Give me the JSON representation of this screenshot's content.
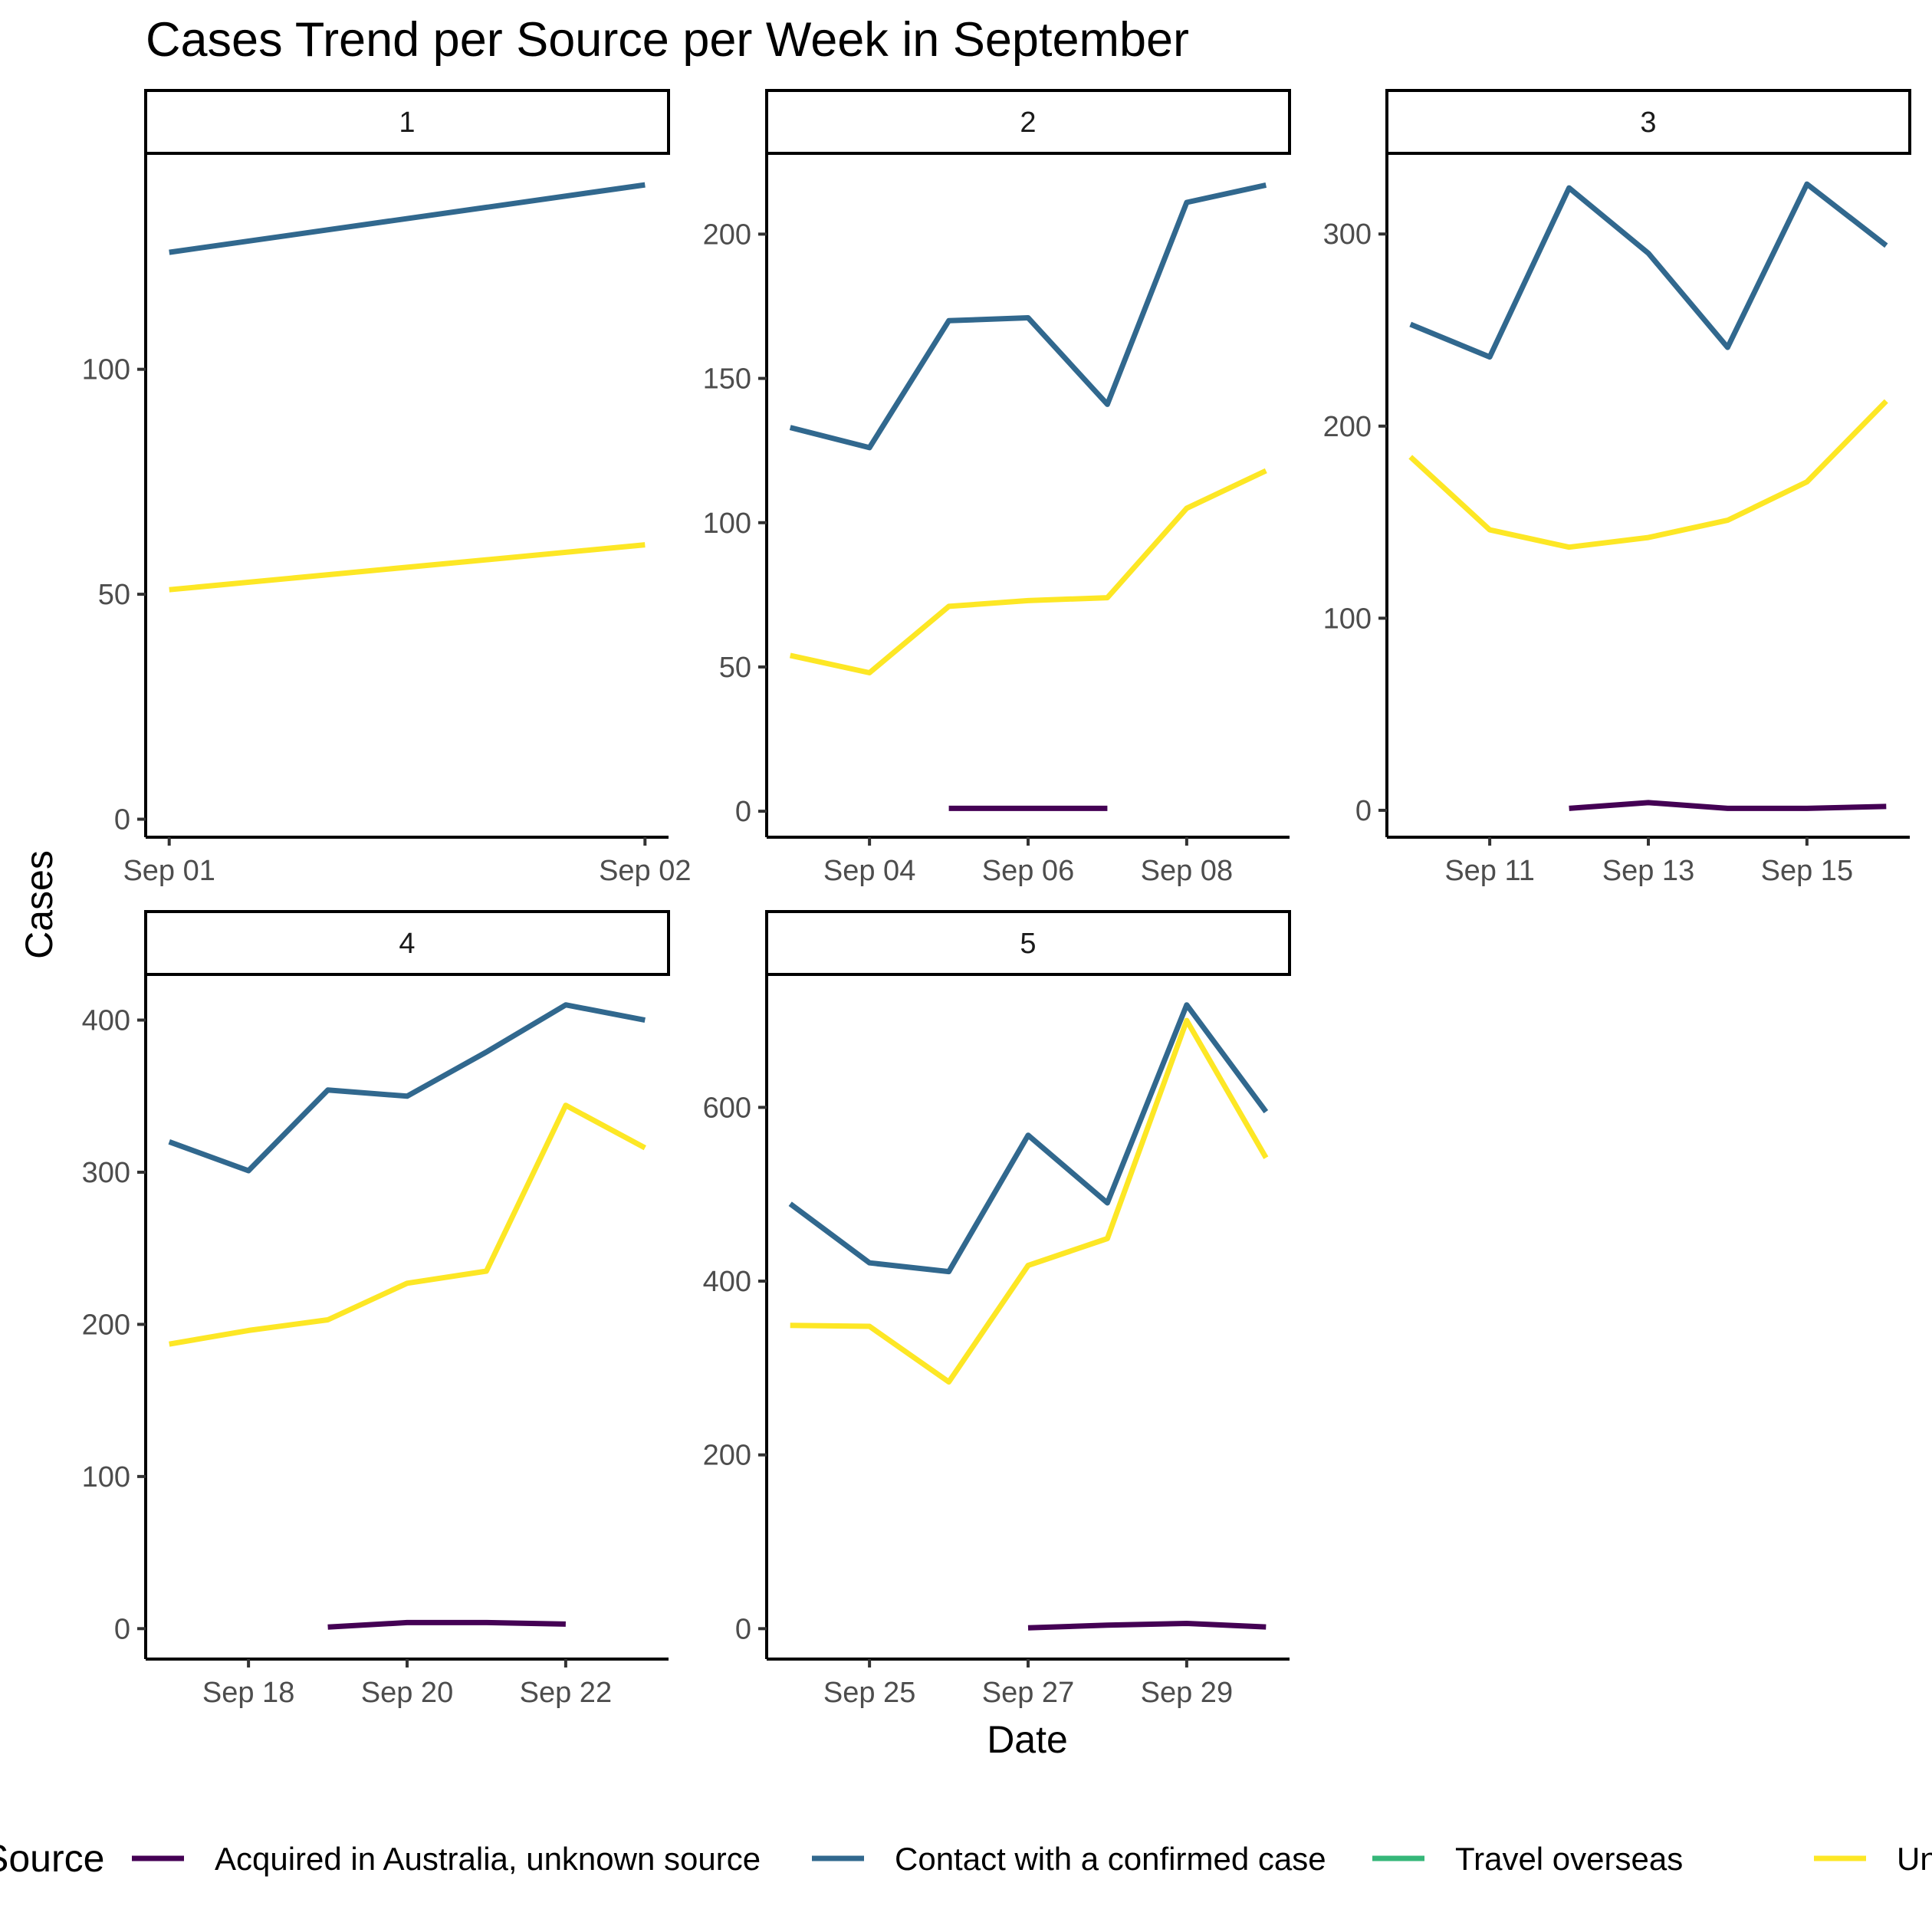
{
  "chart_data": {
    "type": "line",
    "title": "Cases Trend per Source per Week in September",
    "xlabel": "Date",
    "ylabel": "Cases",
    "legend": {
      "title": "Source",
      "placement": "bottom",
      "entries": [
        {
          "name": "Acquired in Australia, unknown source",
          "color": "#440154"
        },
        {
          "name": "Contact with a confirmed case",
          "color": "#31688E"
        },
        {
          "name": "Travel overseas",
          "color": "#35B779"
        },
        {
          "name": "Under investigation",
          "color": "#FDE725"
        }
      ]
    },
    "grid": false,
    "facets": [
      {
        "label": "1",
        "xlim": [
          "2020-09-01",
          "2020-09-02"
        ],
        "x_ticks": [
          {
            "date": "2020-09-01",
            "label": "Sep 01"
          },
          {
            "date": "2020-09-02",
            "label": "Sep 02"
          }
        ],
        "ylim": [
          -4,
          148
        ],
        "y_ticks": [
          0,
          50,
          100
        ],
        "series": [
          {
            "source": "Contact with a confirmed case",
            "x": [
              "2020-09-01",
              "2020-09-02"
            ],
            "y": [
              126,
              141
            ]
          },
          {
            "source": "Under investigation",
            "x": [
              "2020-09-01",
              "2020-09-02"
            ],
            "y": [
              51,
              61
            ]
          }
        ]
      },
      {
        "label": "2",
        "xlim": [
          "2020-09-03",
          "2020-09-09"
        ],
        "x_ticks": [
          {
            "date": "2020-09-04",
            "label": "Sep 04"
          },
          {
            "date": "2020-09-06",
            "label": "Sep 06"
          },
          {
            "date": "2020-09-08",
            "label": "Sep 08"
          }
        ],
        "ylim": [
          -9,
          228
        ],
        "y_ticks": [
          0,
          50,
          100,
          150,
          200
        ],
        "series": [
          {
            "source": "Acquired in Australia, unknown source",
            "x": [
              "2020-09-05",
              "2020-09-06",
              "2020-09-07"
            ],
            "y": [
              1,
              1,
              1
            ]
          },
          {
            "source": "Contact with a confirmed case",
            "x": [
              "2020-09-03",
              "2020-09-04",
              "2020-09-05",
              "2020-09-06",
              "2020-09-07",
              "2020-09-08",
              "2020-09-09"
            ],
            "y": [
              133,
              126,
              170,
              171,
              141,
              211,
              217
            ]
          },
          {
            "source": "Under investigation",
            "x": [
              "2020-09-03",
              "2020-09-04",
              "2020-09-05",
              "2020-09-06",
              "2020-09-07",
              "2020-09-08",
              "2020-09-09"
            ],
            "y": [
              54,
              48,
              71,
              73,
              74,
              105,
              118
            ]
          }
        ]
      },
      {
        "label": "3",
        "xlim": [
          "2020-09-10",
          "2020-09-16"
        ],
        "x_ticks": [
          {
            "date": "2020-09-11",
            "label": "Sep 11"
          },
          {
            "date": "2020-09-13",
            "label": "Sep 13"
          },
          {
            "date": "2020-09-15",
            "label": "Sep 15"
          }
        ],
        "ylim": [
          -14,
          342
        ],
        "y_ticks": [
          0,
          100,
          200,
          300
        ],
        "series": [
          {
            "source": "Acquired in Australia, unknown source",
            "x": [
              "2020-09-12",
              "2020-09-13",
              "2020-09-14",
              "2020-09-15",
              "2020-09-16"
            ],
            "y": [
              1,
              4,
              1,
              1,
              2
            ]
          },
          {
            "source": "Contact with a confirmed case",
            "x": [
              "2020-09-10",
              "2020-09-11",
              "2020-09-12",
              "2020-09-13",
              "2020-09-14",
              "2020-09-15",
              "2020-09-16"
            ],
            "y": [
              253,
              236,
              324,
              290,
              241,
              326,
              294
            ]
          },
          {
            "source": "Under investigation",
            "x": [
              "2020-09-10",
              "2020-09-11",
              "2020-09-12",
              "2020-09-13",
              "2020-09-14",
              "2020-09-15",
              "2020-09-16"
            ],
            "y": [
              184,
              146,
              137,
              142,
              151,
              171,
              213
            ]
          }
        ]
      },
      {
        "label": "4",
        "xlim": [
          "2020-09-17",
          "2020-09-23"
        ],
        "x_ticks": [
          {
            "date": "2020-09-18",
            "label": "Sep 18"
          },
          {
            "date": "2020-09-20",
            "label": "Sep 20"
          },
          {
            "date": "2020-09-22",
            "label": "Sep 22"
          }
        ],
        "ylim": [
          -20,
          430
        ],
        "y_ticks": [
          0,
          100,
          200,
          300,
          400
        ],
        "series": [
          {
            "source": "Acquired in Australia, unknown source",
            "x": [
              "2020-09-19",
              "2020-09-20",
              "2020-09-21",
              "2020-09-22"
            ],
            "y": [
              1,
              4,
              4,
              3
            ]
          },
          {
            "source": "Contact with a confirmed case",
            "x": [
              "2020-09-17",
              "2020-09-18",
              "2020-09-19",
              "2020-09-20",
              "2020-09-21",
              "2020-09-22",
              "2020-09-23"
            ],
            "y": [
              320,
              301,
              354,
              350,
              379,
              410,
              400
            ]
          },
          {
            "source": "Under investigation",
            "x": [
              "2020-09-17",
              "2020-09-18",
              "2020-09-19",
              "2020-09-20",
              "2020-09-21",
              "2020-09-22",
              "2020-09-23"
            ],
            "y": [
              187,
              196,
              203,
              227,
              235,
              344,
              316
            ]
          }
        ]
      },
      {
        "label": "5",
        "xlim": [
          "2020-09-24",
          "2020-09-30"
        ],
        "x_ticks": [
          {
            "date": "2020-09-25",
            "label": "Sep 25"
          },
          {
            "date": "2020-09-27",
            "label": "Sep 27"
          },
          {
            "date": "2020-09-29",
            "label": "Sep 29"
          }
        ],
        "ylim": [
          -35,
          753
        ],
        "y_ticks": [
          0,
          200,
          400,
          600
        ],
        "series": [
          {
            "source": "Acquired in Australia, unknown source",
            "x": [
              "2020-09-27",
              "2020-09-28",
              "2020-09-29",
              "2020-09-30"
            ],
            "y": [
              1,
              4,
              6,
              2
            ]
          },
          {
            "source": "Contact with a confirmed case",
            "x": [
              "2020-09-24",
              "2020-09-25",
              "2020-09-26",
              "2020-09-27",
              "2020-09-28",
              "2020-09-29",
              "2020-09-30"
            ],
            "y": [
              489,
              421,
              411,
              568,
              490,
              718,
              595
            ]
          },
          {
            "source": "Under investigation",
            "x": [
              "2020-09-24",
              "2020-09-25",
              "2020-09-26",
              "2020-09-27",
              "2020-09-28",
              "2020-09-29",
              "2020-09-30"
            ],
            "y": [
              349,
              348,
              284,
              418,
              449,
              700,
              542
            ]
          }
        ]
      }
    ]
  }
}
